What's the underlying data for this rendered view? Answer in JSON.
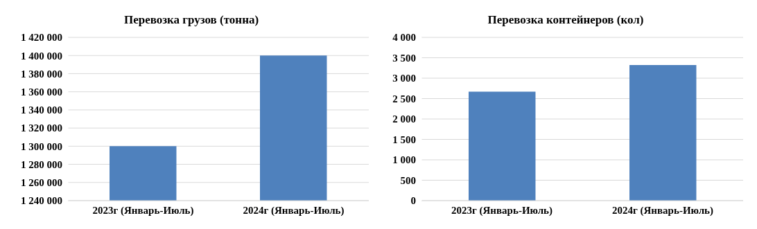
{
  "chart_data": [
    {
      "type": "bar",
      "title": "Перевозка грузов (тонна)",
      "categories": [
        "2023г (Январь-Июль)",
        "2024г (Январь-Июль)"
      ],
      "values": [
        1300000,
        1400000
      ],
      "color": "#4f81bd",
      "ylim": [
        1240000,
        1420000
      ],
      "yticks": [
        {
          "value": 1240000,
          "label": "1 240 000"
        },
        {
          "value": 1260000,
          "label": "1 260 000"
        },
        {
          "value": 1280000,
          "label": "1 280 000"
        },
        {
          "value": 1300000,
          "label": "1 300 000"
        },
        {
          "value": 1320000,
          "label": "1 320 000"
        },
        {
          "value": 1340000,
          "label": "1 340 000"
        },
        {
          "value": 1360000,
          "label": "1 360 000"
        },
        {
          "value": 1380000,
          "label": "1 380 000"
        },
        {
          "value": 1400000,
          "label": "1 400 000"
        },
        {
          "value": 1420000,
          "label": "1 420 000"
        }
      ],
      "grid": "y"
    },
    {
      "type": "bar",
      "title": "Перевозка контейнеров (кол)",
      "categories": [
        "2023г (Январь-Июль)",
        "2024г (Январь-Июль)"
      ],
      "values": [
        2670,
        3320
      ],
      "color": "#4f81bd",
      "ylim": [
        0,
        4000
      ],
      "yticks": [
        0,
        500,
        {
          "value": 1000,
          "label": "1 000"
        },
        {
          "value": 1500,
          "label": "1 500"
        },
        {
          "value": 2000,
          "label": "2 000"
        },
        {
          "value": 2500,
          "label": "2 500"
        },
        {
          "value": 3000,
          "label": "3 000"
        },
        {
          "value": 3500,
          "label": "3 500"
        },
        {
          "value": 4000,
          "label": "4 000"
        }
      ],
      "grid": "y"
    }
  ]
}
